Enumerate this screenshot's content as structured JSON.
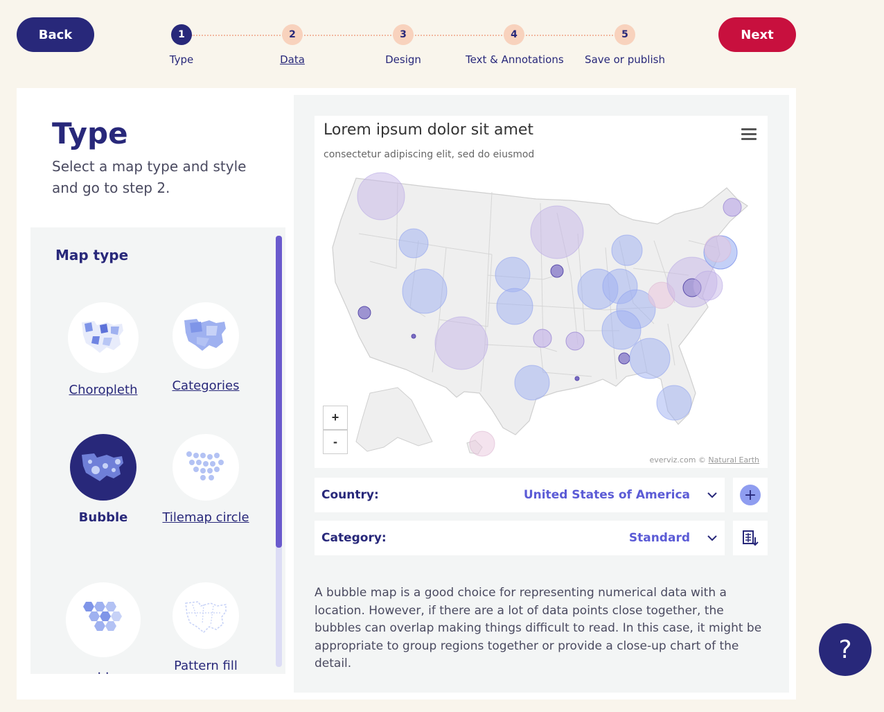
{
  "nav": {
    "back_label": "Back",
    "next_label": "Next"
  },
  "steps": [
    {
      "num": "1",
      "label": "Type",
      "state": "active"
    },
    {
      "num": "2",
      "label": "Data",
      "state": "link"
    },
    {
      "num": "3",
      "label": "Design",
      "state": "default"
    },
    {
      "num": "4",
      "label": "Text & Annotations",
      "state": "default"
    },
    {
      "num": "5",
      "label": "Save or publish",
      "state": "default"
    }
  ],
  "page": {
    "title": "Type",
    "description": "Select a map type and style and go to step 2."
  },
  "map_type": {
    "title": "Map type",
    "items": [
      {
        "label": "Choropleth",
        "icon": "choropleth-map-icon",
        "selected": false
      },
      {
        "label": "Categories",
        "icon": "categories-map-icon",
        "selected": false
      },
      {
        "label": "Bubble",
        "icon": "bubble-map-icon",
        "selected": true
      },
      {
        "label": "Tilemap circle",
        "icon": "tilemap-circle-icon",
        "selected": false
      },
      {
        "label": ". .",
        "icon": "hexagon-tilemap-icon",
        "selected": false
      },
      {
        "label": "Pattern fill",
        "icon": "pattern-fill-map-icon",
        "selected": false
      }
    ]
  },
  "chart": {
    "title": "Lorem ipsum dolor sit amet",
    "subtitle": "consectetur adipiscing elit, sed do eiusmod",
    "zoom_in": "+",
    "zoom_out": "-",
    "credits_prefix": "everviz.com ©",
    "credits_link": "Natural Earth",
    "colors": {
      "bubble_blue": "#9db0f2",
      "bubble_purple": "#c6b6e8",
      "bubble_dark": "#7a6cc4",
      "bubble_pink": "#e9c8de"
    }
  },
  "selectors": {
    "country_label": "Country:",
    "country_value": "United States of America",
    "category_label": "Category:",
    "category_value": "Standard"
  },
  "description": "A bubble map is a good choice for representing numerical data with a location. However, if there are a lot of data points close together, the bubbles can overlap making things difficult to read. In this case, it might be appropriate to group regions together or provide a close-up chart of the detail.",
  "help_label": "?"
}
